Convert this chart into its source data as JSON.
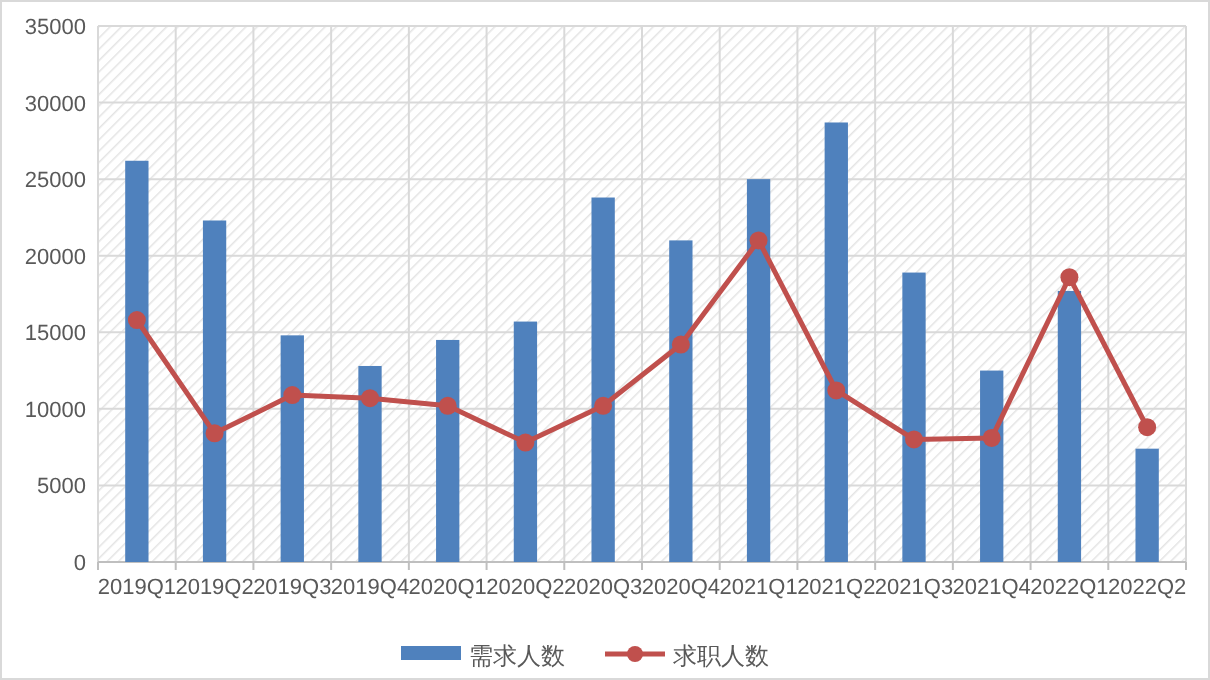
{
  "chart_data": {
    "type": "bar",
    "categories": [
      "2019Q1",
      "2019Q2",
      "2019Q3",
      "2019Q4",
      "2020Q1",
      "2020Q2",
      "2020Q3",
      "2020Q4",
      "2021Q1",
      "2021Q2",
      "2021Q3",
      "2021Q4",
      "2022Q1",
      "2022Q2"
    ],
    "series": [
      {
        "name": "需求人数",
        "color": "#4f81bd",
        "values": [
          26200,
          22300,
          14800,
          12800,
          14500,
          15700,
          23800,
          21000,
          25000,
          28700,
          18900,
          12500,
          17700,
          7400
        ]
      },
      {
        "name": "求职人数",
        "type": "line",
        "color": "#c0504d",
        "marker": "circle",
        "values": [
          15800,
          8400,
          10900,
          10700,
          10200,
          7800,
          10200,
          14200,
          21000,
          11200,
          8000,
          8100,
          18600,
          8800
        ]
      }
    ],
    "ylim": [
      0,
      35000
    ],
    "yticks": [
      0,
      5000,
      10000,
      15000,
      20000,
      25000,
      30000,
      35000
    ],
    "grid": true,
    "legend": "bottom"
  }
}
